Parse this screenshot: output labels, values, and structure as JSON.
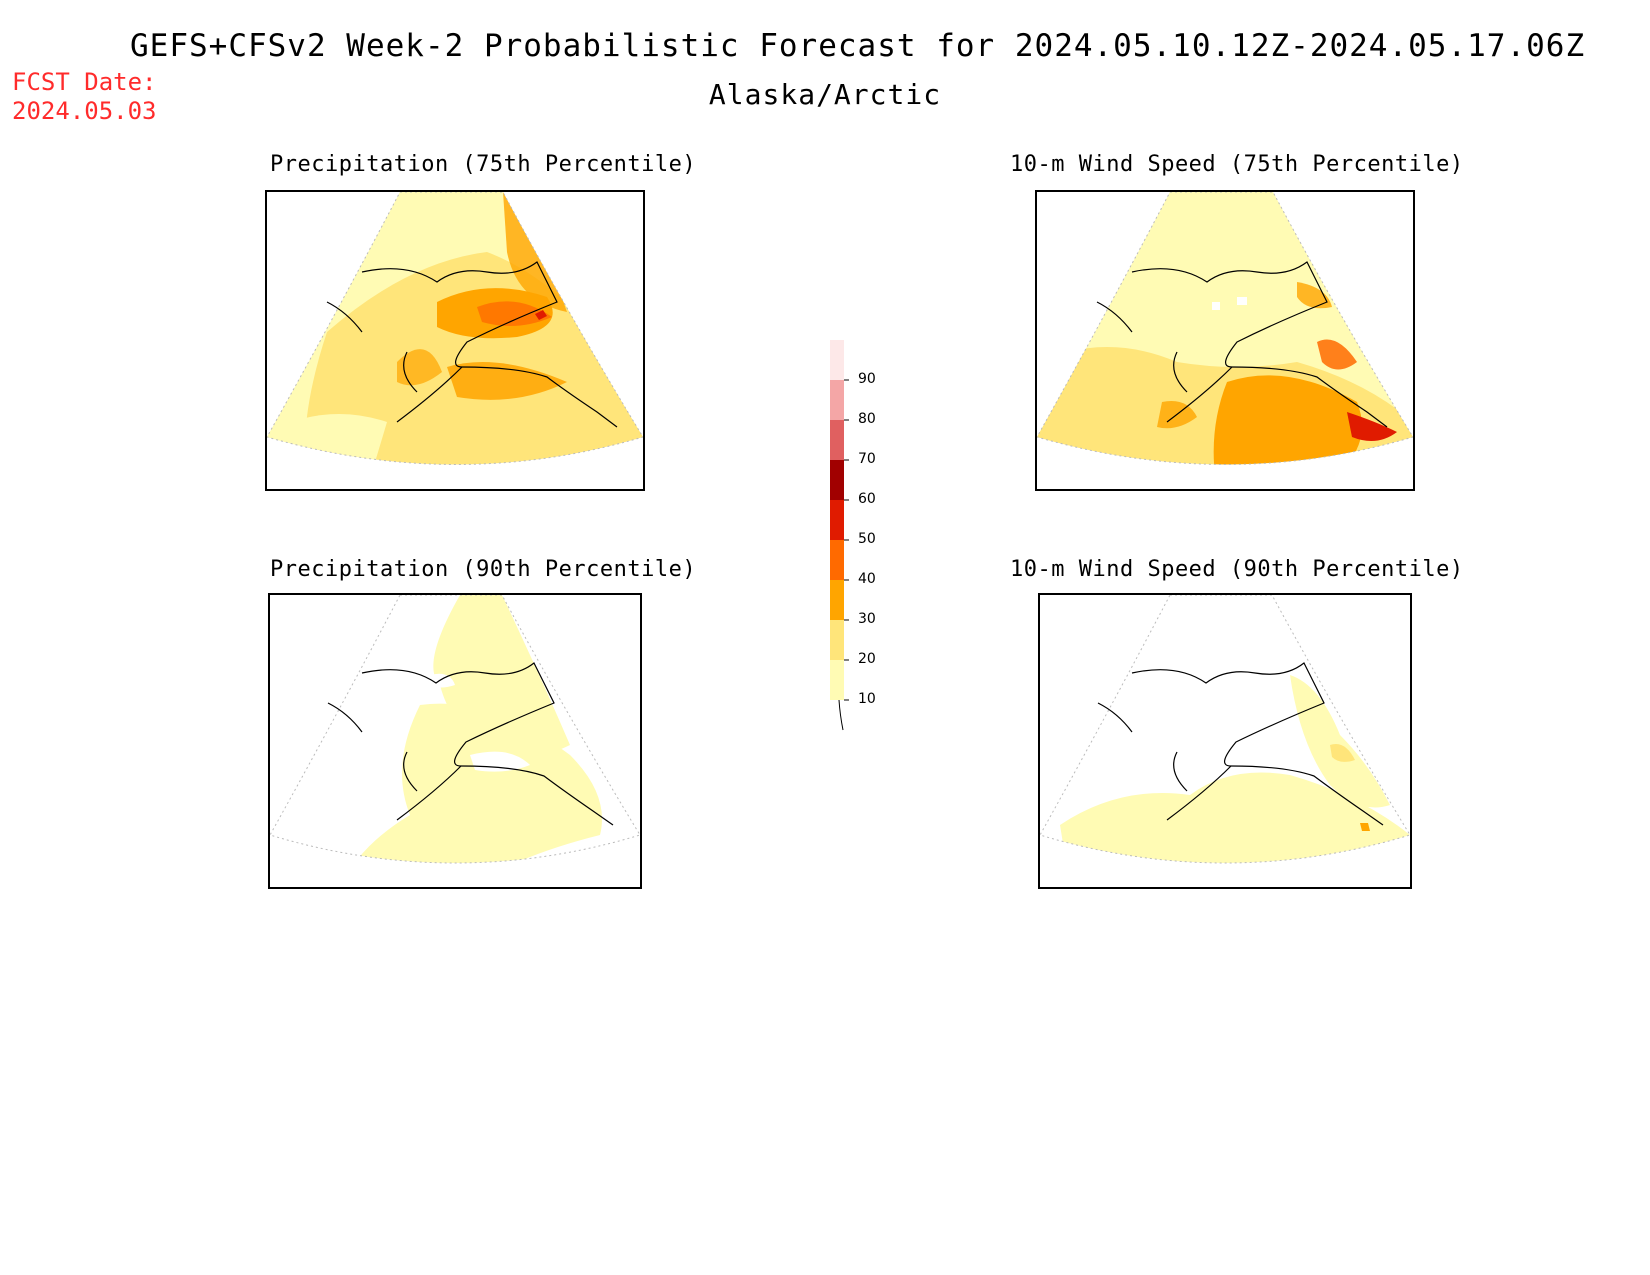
{
  "header": {
    "title": "GEFS+CFSv2 Week-2 Probabilistic Forecast for 2024.05.10.12Z-2024.05.17.06Z",
    "subtitle": "Alaska/Arctic",
    "fcst_date_label": "FCST Date:",
    "fcst_date_value": "2024.05.03"
  },
  "panels": {
    "precip75": {
      "title": "Precipitation (75th Percentile)"
    },
    "wind75": {
      "title": "10-m Wind Speed (75th Percentile)"
    },
    "precip90": {
      "title": "Precipitation (90th Percentile)"
    },
    "wind90": {
      "title": "10-m Wind Speed (90th Percentile)"
    }
  },
  "colorbar": {
    "levels": [
      "10",
      "20",
      "30",
      "40",
      "50",
      "60",
      "70",
      "80",
      "90"
    ],
    "colors": [
      "#fffbb4",
      "#ffe57a",
      "#ffa500",
      "#ff6a00",
      "#e01b00",
      "#a10000",
      "#e06060",
      "#f4a6a6",
      "#fde8e8"
    ]
  }
}
